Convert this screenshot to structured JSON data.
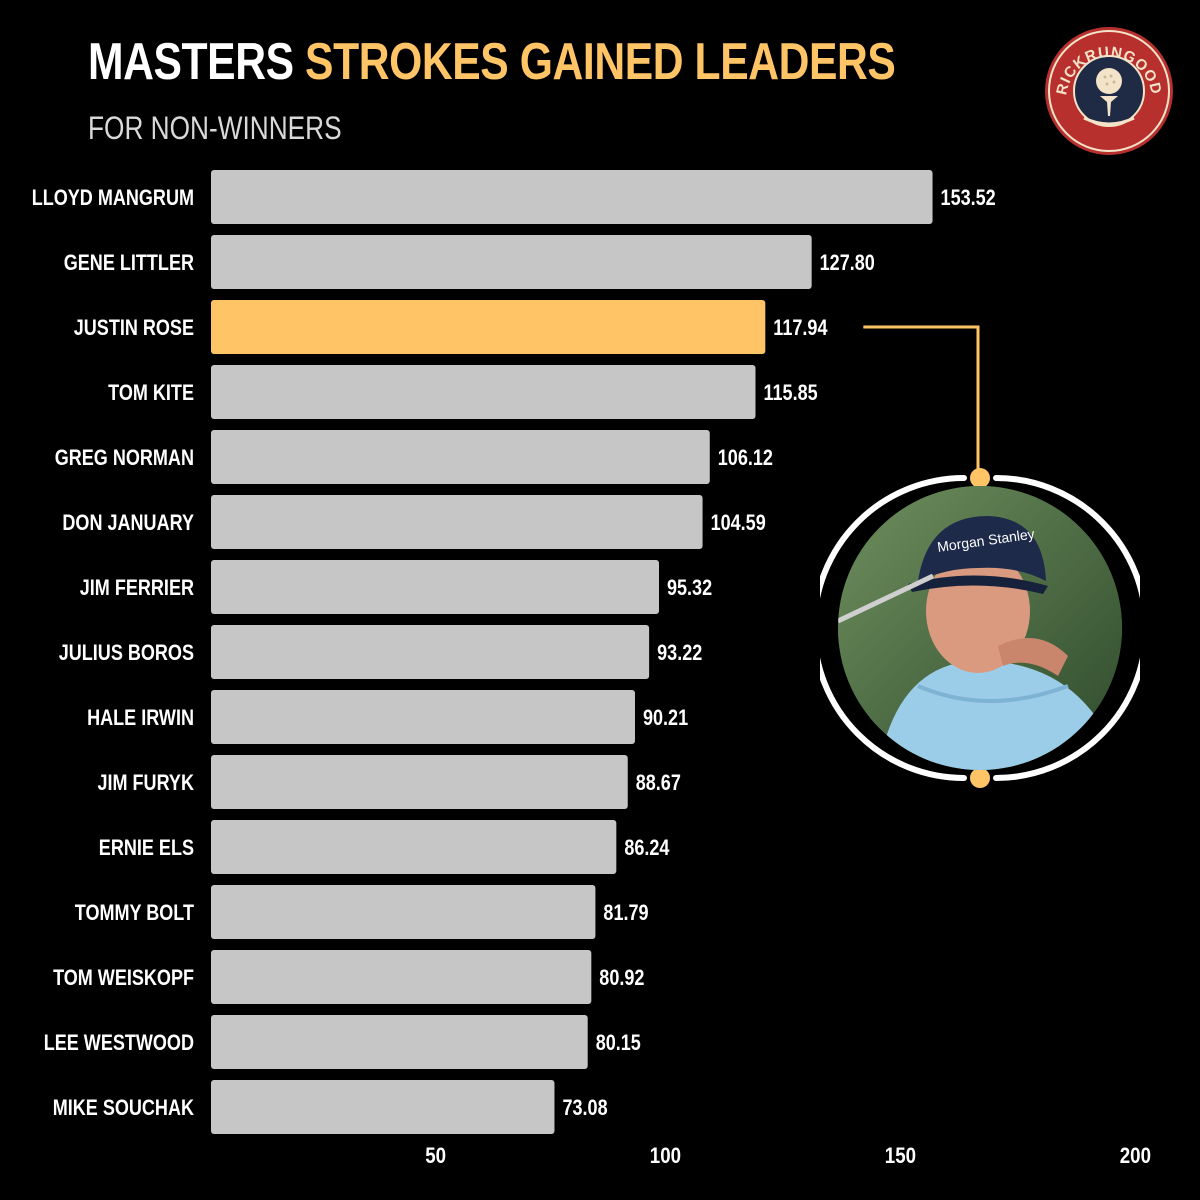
{
  "header": {
    "title_white": "MASTERS",
    "title_gold": "STROKES GAINED LEADERS",
    "subtitle": "FOR NON-WINNERS"
  },
  "logo": {
    "text": "RICKRUNGOOD",
    "icon": "golf-ball-on-tee-icon"
  },
  "highlight": {
    "player": "JUSTIN ROSE",
    "image": "justin-rose-photo"
  },
  "colors": {
    "background": "#000000",
    "bar": "#c6c6c6",
    "highlight": "#ffc466",
    "text": "#ffffff",
    "logo_red": "#b8302e",
    "logo_navy": "#1f2a44",
    "logo_cream": "#f3e3c8"
  },
  "chart_data": {
    "type": "bar",
    "orientation": "horizontal",
    "title": "MASTERS STROKES GAINED LEADERS",
    "subtitle": "FOR NON-WINNERS",
    "categories": [
      "LLOYD MANGRUM",
      "GENE LITTLER",
      "JUSTIN ROSE",
      "TOM KITE",
      "GREG NORMAN",
      "DON JANUARY",
      "JIM FERRIER",
      "JULIUS BOROS",
      "HALE IRWIN",
      "JIM FURYK",
      "ERNIE ELS",
      "TOMMY BOLT",
      "TOM WEISKOPF",
      "LEE WESTWOOD",
      "MIKE SOUCHAK"
    ],
    "values": [
      153.52,
      127.8,
      117.94,
      115.85,
      106.12,
      104.59,
      95.32,
      93.22,
      90.21,
      88.67,
      86.24,
      81.79,
      80.92,
      80.15,
      73.08
    ],
    "value_labels": [
      "153.52",
      "127.80",
      "117.94",
      "115.85",
      "106.12",
      "104.59",
      "95.32",
      "93.22",
      "90.21",
      "88.67",
      "86.24",
      "81.79",
      "80.92",
      "80.15",
      "73.08"
    ],
    "highlight_index": 2,
    "xlim": [
      0,
      200
    ],
    "xticks": [
      50,
      100,
      150,
      200
    ],
    "grid": false,
    "legend": "none"
  }
}
